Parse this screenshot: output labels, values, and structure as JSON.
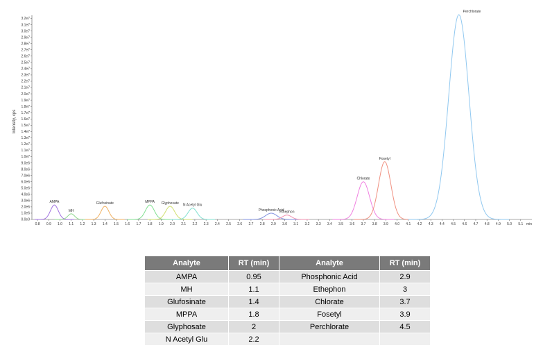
{
  "chart_data": {
    "type": "line",
    "title": "",
    "ylabel": "Intensity, cps",
    "xlabel": "",
    "x_unit": "min",
    "xlim": [
      0.75,
      5.2
    ],
    "ylim": [
      0,
      32500000
    ],
    "x_tick_labels": [
      "0.8",
      "0.9",
      "1.0",
      "1.1",
      "1.2",
      "1.3",
      "1.4",
      "1.5",
      "1.6",
      "1.7",
      "1.8",
      "1.9",
      "2.0",
      "2.1",
      "2.2",
      "2.3",
      "2.4",
      "2.5",
      "2.6",
      "2.7",
      "2.8",
      "2.9",
      "3.0",
      "3.1",
      "3.2",
      "3.3",
      "3.4",
      "3.5",
      "3.6",
      "3.7",
      "3.8",
      "3.9",
      "4.0",
      "4.1",
      "4.2",
      "4.3",
      "4.4",
      "4.5",
      "4.6",
      "4.7",
      "4.8",
      "4.9",
      "5.0",
      "5.1"
    ],
    "y_tick_labels": [
      "0.0e0",
      "1.0e6",
      "2.0e6",
      "3.0e6",
      "4.0e6",
      "5.0e6",
      "6.0e6",
      "7.0e6",
      "8.0e6",
      "9.0e6",
      "1.0e7",
      "1.1e7",
      "1.2e7",
      "1.3e7",
      "1.4e7",
      "1.5e7",
      "1.6e7",
      "1.7e7",
      "1.8e7",
      "1.9e7",
      "2.0e7",
      "2.1e7",
      "2.2e7",
      "2.3e7",
      "2.4e7",
      "2.5e7",
      "2.6e7",
      "2.7e7",
      "2.8e7",
      "2.9e7",
      "3.0e7",
      "3.1e7",
      "3.2e7"
    ],
    "grid": false,
    "legend": "none",
    "series": [
      {
        "name": "AMPA",
        "color": "#a070e0",
        "rt": 0.95,
        "height": 2300000,
        "width": 0.035
      },
      {
        "name": "MH",
        "color": "#90d890",
        "rt": 1.1,
        "height": 900000,
        "width": 0.03
      },
      {
        "name": "Glufosinate",
        "color": "#f0b060",
        "rt": 1.4,
        "height": 2100000,
        "width": 0.035
      },
      {
        "name": "MPPA",
        "color": "#80e090",
        "rt": 1.8,
        "height": 2300000,
        "width": 0.04
      },
      {
        "name": "Glyphosate",
        "color": "#d0e070",
        "rt": 1.98,
        "height": 2100000,
        "width": 0.04
      },
      {
        "name": "N Acetyl Glu",
        "color": "#80e0d0",
        "rt": 2.18,
        "height": 1800000,
        "width": 0.04
      },
      {
        "name": "Phosphonic Acid",
        "color": "#8090e0",
        "rt": 2.88,
        "height": 1000000,
        "width": 0.05
      },
      {
        "name": "Ethephon",
        "color": "#f090b0",
        "rt": 3.02,
        "height": 700000,
        "width": 0.04
      },
      {
        "name": "Chlorate",
        "color": "#f080e0",
        "rt": 3.7,
        "height": 6000000,
        "width": 0.055
      },
      {
        "name": "Fosetyl",
        "color": "#f09080",
        "rt": 3.89,
        "height": 9200000,
        "width": 0.055
      },
      {
        "name": "Perchlorate",
        "color": "#90c8f0",
        "rt": 4.55,
        "height": 32600000,
        "width": 0.09
      }
    ]
  },
  "table": {
    "headers": [
      "Analyte",
      "RT (min)",
      "Analyte",
      "RT (min)"
    ],
    "rows": [
      [
        "AMPA",
        "0.95",
        "Phosphonic Acid",
        "2.9"
      ],
      [
        "MH",
        "1.1",
        "Ethephon",
        "3"
      ],
      [
        "Glufosinate",
        "1.4",
        "Chlorate",
        "3.7"
      ],
      [
        "MPPA",
        "1.8",
        "Fosetyl",
        "3.9"
      ],
      [
        "Glyphosate",
        "2",
        "Perchlorate",
        "4.5"
      ],
      [
        "N Acetyl Glu",
        "2.2",
        "",
        ""
      ]
    ]
  }
}
